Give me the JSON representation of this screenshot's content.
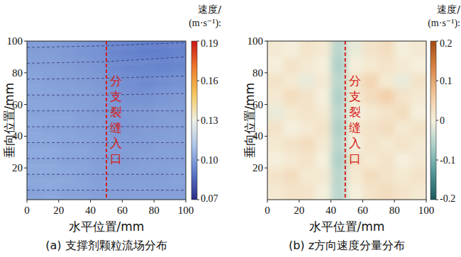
{
  "chart_data": [
    {
      "type": "heatmap",
      "title": "(a) 支撑剂颗粒流场分布",
      "x_label": "水平位置/mm",
      "y_label": "垂向位置/mm",
      "xlim": [
        0,
        100
      ],
      "ylim": [
        0,
        100
      ],
      "xticks": [
        0,
        20,
        40,
        60,
        80,
        100
      ],
      "yticks": [
        20,
        40,
        60,
        80,
        100
      ],
      "x": [
        5,
        15,
        25,
        35,
        45,
        55,
        65,
        75,
        85,
        95
      ],
      "y": [
        95,
        85,
        75,
        65,
        55,
        45,
        35,
        25,
        15,
        5
      ],
      "cells": [
        [
          0.1,
          0.1,
          0.099,
          0.098,
          0.097,
          0.094,
          0.093,
          0.092,
          0.092,
          0.093
        ],
        [
          0.101,
          0.101,
          0.1,
          0.099,
          0.098,
          0.095,
          0.094,
          0.094,
          0.093,
          0.094
        ],
        [
          0.102,
          0.101,
          0.101,
          0.1,
          0.099,
          0.097,
          0.096,
          0.095,
          0.096,
          0.097
        ],
        [
          0.102,
          0.102,
          0.101,
          0.101,
          0.1,
          0.098,
          0.097,
          0.097,
          0.098,
          0.099
        ],
        [
          0.102,
          0.102,
          0.102,
          0.101,
          0.1,
          0.099,
          0.099,
          0.099,
          0.1,
          0.1
        ],
        [
          0.103,
          0.102,
          0.102,
          0.101,
          0.101,
          0.099,
          0.099,
          0.1,
          0.1,
          0.101
        ],
        [
          0.103,
          0.103,
          0.102,
          0.102,
          0.101,
          0.1,
          0.1,
          0.1,
          0.101,
          0.101
        ],
        [
          0.103,
          0.103,
          0.102,
          0.102,
          0.101,
          0.1,
          0.1,
          0.101,
          0.101,
          0.101
        ],
        [
          0.103,
          0.103,
          0.103,
          0.102,
          0.101,
          0.101,
          0.101,
          0.101,
          0.101,
          0.102
        ],
        [
          0.102,
          0.103,
          0.102,
          0.102,
          0.101,
          0.101,
          0.101,
          0.101,
          0.101,
          0.101
        ]
      ],
      "streamlines": [
        {
          "x": [
            0,
            50,
            100
          ],
          "y": [
            96,
            97,
            99
          ]
        },
        {
          "x": [
            0,
            50,
            100
          ],
          "y": [
            86,
            87,
            90
          ]
        },
        {
          "x": [
            0,
            50,
            100
          ],
          "y": [
            76,
            76.5,
            78
          ]
        },
        {
          "x": [
            0,
            50,
            100
          ],
          "y": [
            66,
            66,
            67
          ]
        },
        {
          "x": [
            0,
            50,
            100
          ],
          "y": [
            56,
            56,
            56
          ]
        },
        {
          "x": [
            0,
            50,
            100
          ],
          "y": [
            46,
            46,
            46
          ]
        },
        {
          "x": [
            0,
            50,
            100
          ],
          "y": [
            36,
            36,
            36
          ]
        },
        {
          "x": [
            0,
            50,
            100
          ],
          "y": [
            26,
            26,
            26
          ]
        },
        {
          "x": [
            0,
            50,
            100
          ],
          "y": [
            16,
            16,
            16
          ]
        },
        {
          "x": [
            0,
            50,
            100
          ],
          "y": [
            6,
            6,
            6
          ]
        }
      ],
      "annotations": [
        {
          "text": "分支裂缝入口",
          "x": 50
        }
      ],
      "colorbar_label": [
        "速度/",
        "(m·s⁻¹):"
      ],
      "colorbar_range": [
        0.07,
        0.19
      ],
      "colorbar_ticks": [
        0.07,
        {
          "value": 0.1,
          "label": "0.10"
        },
        0.13,
        0.16,
        0.19
      ]
    },
    {
      "type": "heatmap",
      "title": "(b) z方向速度分量分布",
      "x_label": "水平位置/mm",
      "y_label": "垂向位置/mm",
      "xlim": [
        0,
        100
      ],
      "ylim": [
        0,
        100
      ],
      "xticks": [
        0,
        20,
        40,
        60,
        80,
        100
      ],
      "yticks": [
        20,
        40,
        60,
        80,
        100
      ],
      "x": [
        5,
        15,
        25,
        35,
        45,
        55,
        65,
        75,
        85,
        95
      ],
      "y": [
        95,
        85,
        75,
        65,
        55,
        45,
        35,
        25,
        15,
        5
      ],
      "cells": [
        [
          0.01,
          0.0,
          0.02,
          0.01,
          -0.05,
          -0.01,
          0.02,
          0.03,
          0.0,
          0.01
        ],
        [
          0.0,
          0.02,
          0.01,
          0.0,
          -0.06,
          0.0,
          0.01,
          0.02,
          0.01,
          0.0
        ],
        [
          0.02,
          0.01,
          -0.01,
          0.01,
          -0.05,
          0.02,
          0.04,
          0.01,
          -0.01,
          0.02
        ],
        [
          0.01,
          0.03,
          0.02,
          0.0,
          -0.06,
          0.01,
          0.03,
          0.05,
          0.02,
          0.01
        ],
        [
          -0.01,
          0.01,
          0.02,
          0.01,
          -0.05,
          0.0,
          0.01,
          0.02,
          0.03,
          0.0
        ],
        [
          0.02,
          0.0,
          0.01,
          0.02,
          -0.06,
          0.01,
          0.02,
          0.03,
          0.01,
          0.02
        ],
        [
          0.01,
          0.02,
          0.03,
          0.01,
          -0.05,
          0.0,
          0.02,
          0.01,
          0.02,
          0.01
        ],
        [
          0.0,
          0.01,
          0.02,
          0.0,
          -0.06,
          0.02,
          0.01,
          0.02,
          0.0,
          0.01
        ],
        [
          0.02,
          0.03,
          0.01,
          0.01,
          -0.05,
          0.01,
          0.03,
          0.02,
          0.01,
          0.02
        ],
        [
          0.01,
          0.02,
          0.02,
          0.0,
          -0.05,
          0.0,
          0.02,
          0.03,
          0.02,
          0.01
        ]
      ],
      "annotations": [
        {
          "text": "分支裂缝入口",
          "x": 49
        }
      ],
      "colorbar_label": [
        "速度/",
        "(m·s⁻¹):"
      ],
      "colorbar_range": [
        -0.2,
        0.2
      ],
      "colorbar_ticks": [
        -0.2,
        -0.1,
        0,
        0.1,
        0.2
      ]
    }
  ]
}
